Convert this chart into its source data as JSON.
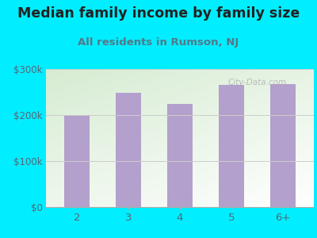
{
  "title": "Median family income by family size",
  "subtitle": "All residents in Rumson, NJ",
  "categories": [
    "2",
    "3",
    "4",
    "5",
    "6+"
  ],
  "values": [
    200000,
    248000,
    225000,
    265000,
    268000
  ],
  "bar_color": "#b3a0cc",
  "background_outer": "#00eeff",
  "background_inner_top_left": "#d6ecd2",
  "background_inner_bottom_right": "#ffffff",
  "title_color": "#222222",
  "subtitle_color": "#557788",
  "tick_color": "#556677",
  "ylim": [
    0,
    300000
  ],
  "yticks": [
    0,
    100000,
    200000,
    300000
  ],
  "ytick_labels": [
    "$0",
    "$100k",
    "$200k",
    "$300k"
  ],
  "title_fontsize": 12.5,
  "subtitle_fontsize": 9.5,
  "watermark": "City-Data.com"
}
